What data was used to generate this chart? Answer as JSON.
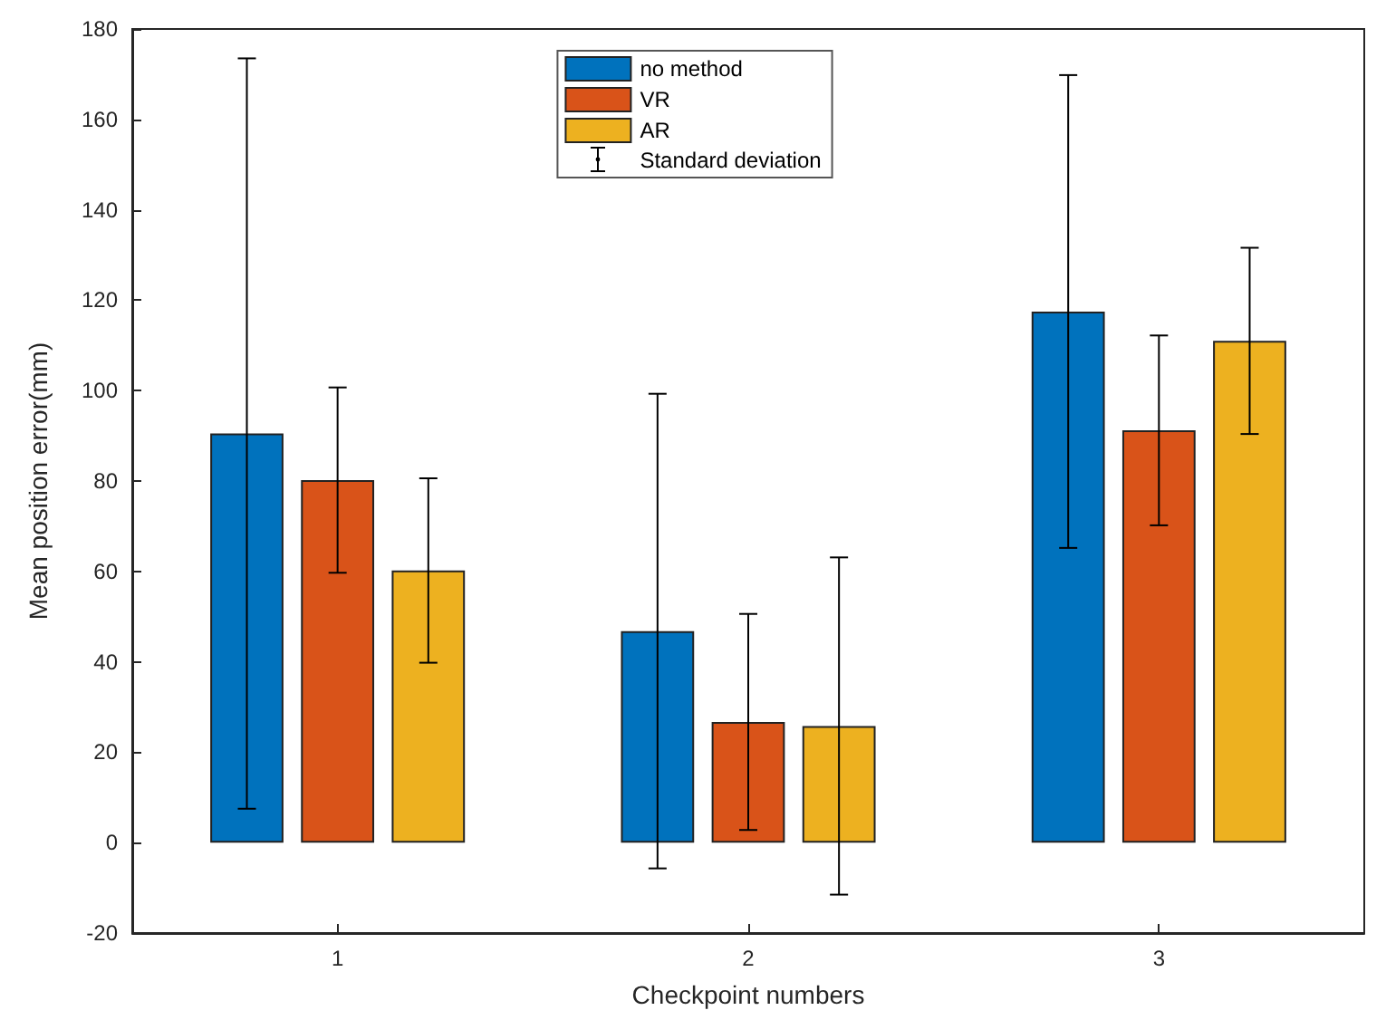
{
  "chart_data": {
    "type": "bar",
    "xlabel": "Checkpoint numbers",
    "ylabel": "Mean position error(mm)",
    "categories": [
      "1",
      "2",
      "3"
    ],
    "series": [
      {
        "name": "no method",
        "color": "#0072bd",
        "values": [
          90.5,
          46.8,
          117.5
        ],
        "errors": [
          83,
          52.5,
          52.3
        ]
      },
      {
        "name": "VR",
        "color": "#d95319",
        "values": [
          80.2,
          26.7,
          91.2
        ],
        "errors": [
          20.5,
          23.9,
          21
        ]
      },
      {
        "name": "AR",
        "color": "#edb120",
        "values": [
          60.2,
          25.8,
          111
        ],
        "errors": [
          20.4,
          37.3,
          20.6
        ]
      }
    ],
    "annotations": [
      "Standard deviation"
    ],
    "ylim": [
      -20,
      180
    ],
    "yticks": [
      -20,
      0,
      20,
      40,
      60,
      80,
      100,
      120,
      140,
      160,
      180
    ],
    "grid": false,
    "legend": "top"
  }
}
